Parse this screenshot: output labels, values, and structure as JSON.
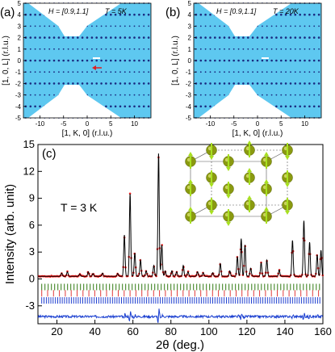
{
  "panel_a": {
    "label": "(a)",
    "field": "H = [0.9,1.1]",
    "temperature": "T = 5K",
    "ylabel": "[1, 0, L] (r.l.u.)",
    "xlabel": "[1, K, 0] (r.l.u.)",
    "xticks": [
      "-10",
      "-5",
      "0",
      "5",
      "10"
    ],
    "yticks": [
      "5",
      "4",
      "3",
      "2",
      "1",
      "0",
      "-1",
      "-2",
      "-3",
      "-4",
      "-5"
    ],
    "arrow_color": "#e02020"
  },
  "panel_b": {
    "label": "(b)",
    "field": "H = [0.9,1.1]",
    "temperature": "T = 20K",
    "ylabel": "[1, 0, L] (r.l.u.)",
    "xlabel": "[1, K, 0] (r.l.u.)",
    "xticks": [
      "-10",
      "-5",
      "0",
      "5",
      "10"
    ],
    "yticks": [
      "5",
      "4",
      "3",
      "2",
      "1",
      "0",
      "-1",
      "-2",
      "-3",
      "-4",
      "-5"
    ]
  },
  "colors": {
    "map_background": "#5ec8f0",
    "map_spot": "#1a2a80",
    "obs": "#ff2020",
    "calc": "#000000",
    "diff": "#1a3fd0",
    "bragg_1": "#2f7a10",
    "bragg_2": "#e03a3a",
    "bragg_3": "#2040d0",
    "atom": "#8a9a10",
    "spin": "#a8e020"
  },
  "chart_data": {
    "type": "line",
    "label": "(c)",
    "annotation": "T = 3 K",
    "xlabel": "2θ (deg.)",
    "ylabel": "Intensity (arb. unit)",
    "xlim": [
      10,
      160
    ],
    "ylim": [
      -5,
      15
    ],
    "xticks": [
      "20",
      "40",
      "60",
      "80",
      "100",
      "120",
      "140",
      "160"
    ],
    "yticks": [
      "-3",
      "0",
      "3",
      "6",
      "9",
      "12",
      "15"
    ],
    "baseline": 0.3,
    "peaks": [
      [
        22.5,
        0.35
      ],
      [
        25.5,
        0.5
      ],
      [
        32,
        0.25
      ],
      [
        36.5,
        0.5
      ],
      [
        39,
        0.3
      ],
      [
        44,
        0.35
      ],
      [
        52,
        0.3
      ],
      [
        55.5,
        4.6
      ],
      [
        58.5,
        9.2
      ],
      [
        61,
        2.6
      ],
      [
        64,
        1.8
      ],
      [
        67,
        0.6
      ],
      [
        71,
        1.2
      ],
      [
        73.5,
        13.7
      ],
      [
        75.2,
        3.5
      ],
      [
        77,
        0.6
      ],
      [
        80.5,
        0.6
      ],
      [
        83,
        0.5
      ],
      [
        86.5,
        1.2
      ],
      [
        89,
        0.5
      ],
      [
        94,
        0.5
      ],
      [
        97,
        0.4
      ],
      [
        102,
        0.4
      ],
      [
        106,
        1.4
      ],
      [
        111,
        0.6
      ],
      [
        115,
        2.2
      ],
      [
        117,
        4.2
      ],
      [
        119,
        3.5
      ],
      [
        122,
        0.9
      ],
      [
        127.5,
        1.5
      ],
      [
        130.5,
        1.8
      ],
      [
        137,
        0.7
      ],
      [
        144,
        4.0
      ],
      [
        150,
        6.2
      ],
      [
        153,
        3.8
      ],
      [
        157,
        2.4
      ],
      [
        159,
        2.9
      ]
    ],
    "bragg_rows": [
      -0.9,
      -1.6,
      -2.4
    ],
    "diff_offset": -4.2
  }
}
